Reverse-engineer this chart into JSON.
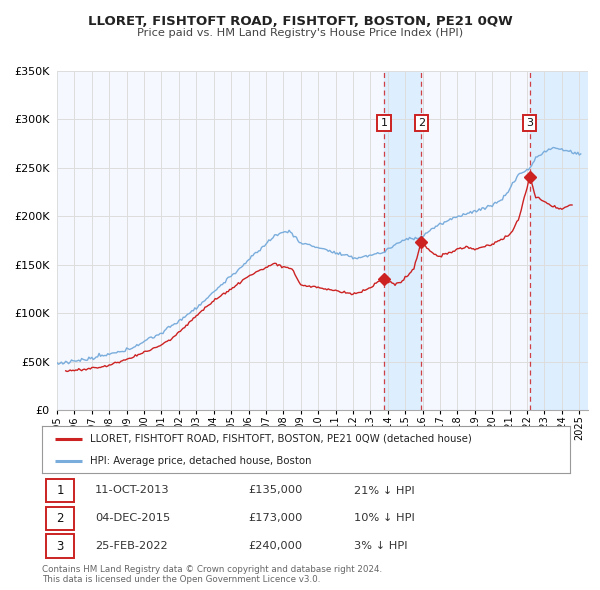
{
  "title": "LLORET, FISHTOFT ROAD, FISHTOFT, BOSTON, PE21 0QW",
  "subtitle": "Price paid vs. HM Land Registry's House Price Index (HPI)",
  "ylim": [
    0,
    350000
  ],
  "yticks": [
    0,
    50000,
    100000,
    150000,
    200000,
    250000,
    300000,
    350000
  ],
  "ytick_labels": [
    "£0",
    "£50K",
    "£100K",
    "£150K",
    "£200K",
    "£250K",
    "£300K",
    "£350K"
  ],
  "background_color": "#ffffff",
  "grid_color": "#dddddd",
  "hpi_color": "#7aaddc",
  "price_color": "#cc2222",
  "transactions": [
    {
      "num": 1,
      "x_year": 2013.78,
      "price": 135000
    },
    {
      "num": 2,
      "x_year": 2015.92,
      "price": 173000
    },
    {
      "num": 3,
      "x_year": 2022.15,
      "price": 240000
    }
  ],
  "shade_regions": [
    {
      "x_start": 2013.78,
      "x_end": 2015.92,
      "color": "#ddeeff"
    },
    {
      "x_start": 2022.15,
      "x_end": 2025.5,
      "color": "#ddeeff"
    }
  ],
  "legend_label_price": "LLORET, FISHTOFT ROAD, FISHTOFT, BOSTON, PE21 0QW (detached house)",
  "legend_label_hpi": "HPI: Average price, detached house, Boston",
  "table_rows": [
    {
      "num": 1,
      "date": "11-OCT-2013",
      "price": "£135,000",
      "hpi": "21% ↓ HPI"
    },
    {
      "num": 2,
      "date": "04-DEC-2015",
      "price": "£173,000",
      "hpi": "10% ↓ HPI"
    },
    {
      "num": 3,
      "date": "25-FEB-2022",
      "price": "£240,000",
      "hpi": "3% ↓ HPI"
    }
  ],
  "footer1": "Contains HM Land Registry data © Crown copyright and database right 2024.",
  "footer2": "This data is licensed under the Open Government Licence v3.0.",
  "xmin": 1995.0,
  "xmax": 2025.5
}
